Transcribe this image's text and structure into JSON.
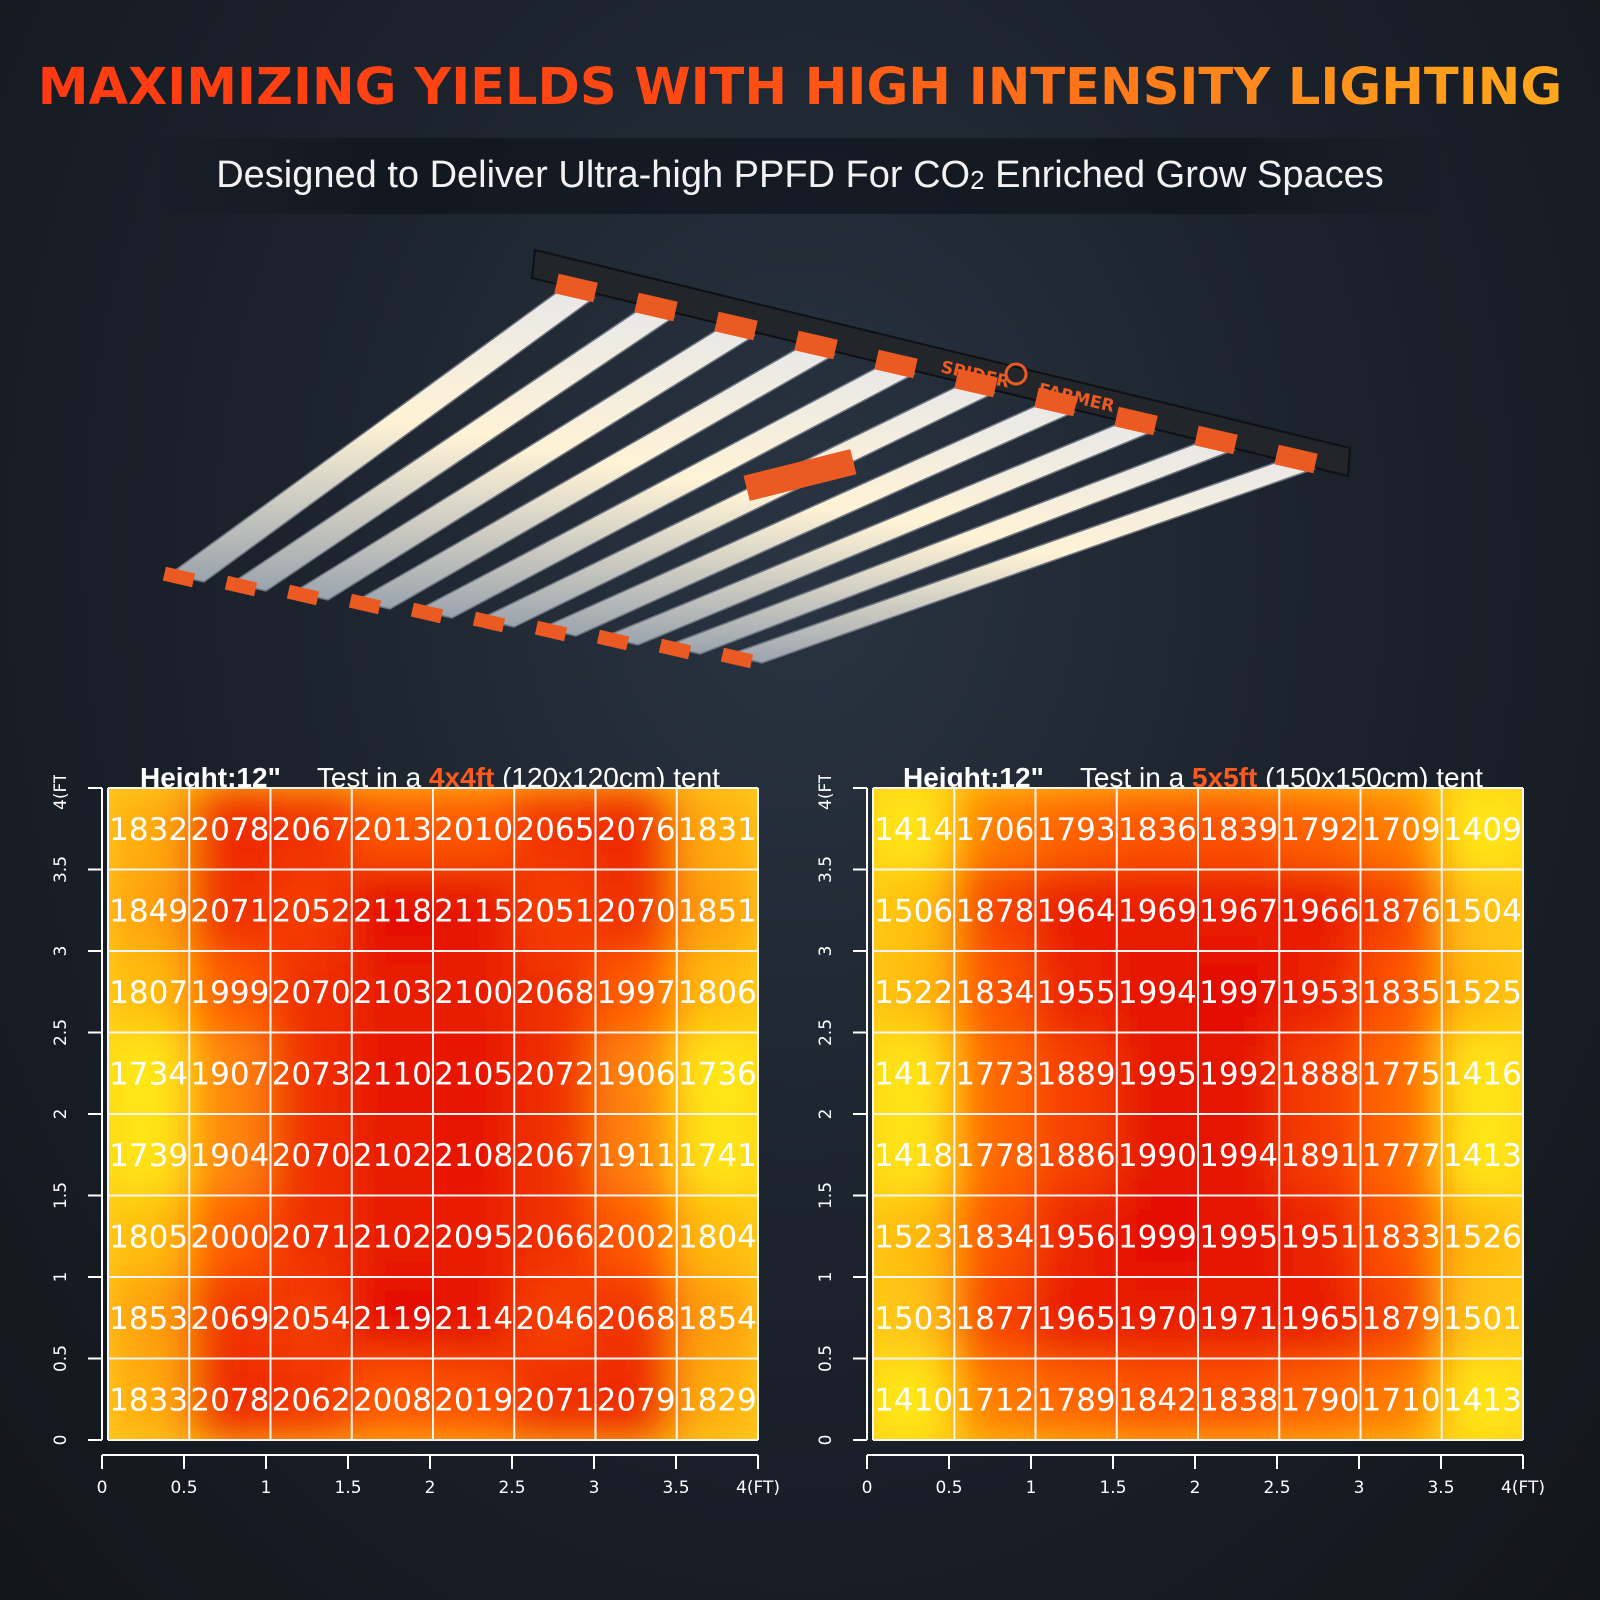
{
  "header": {
    "title_part1": "MAXIMIZING YIELDS WITH HIGH INTENSITY LIGHTING",
    "subtitle_before": "Designed to Deliver Ultra-high PPFD For CO",
    "subtitle_sub": "2",
    "subtitle_after": " Enriched Grow Spaces"
  },
  "product": {
    "brand_left": "SPIDER",
    "brand_right": "FARMER"
  },
  "colors": {
    "title_red": "#ff3a12",
    "title_orange": "#ffa81c",
    "accent": "#ff5a1e",
    "heat_high": "#e41000",
    "heat_mid": "#ff6a00",
    "heat_low": "#ffe818"
  },
  "chart_data": [
    {
      "type": "heatmap",
      "height_label": "Height:12\"",
      "test_prefix": "Test in a ",
      "tent_size": "4x4ft",
      "test_suffix": " (120x120cm) tent",
      "xlabel": "4(FT)",
      "ylabel": "4(FT)",
      "xlim": [
        0,
        4
      ],
      "ylim": [
        0,
        4
      ],
      "x_ticks": [
        "0",
        "0.5",
        "1",
        "1.5",
        "2",
        "2.5",
        "3",
        "3.5",
        "4(FT)"
      ],
      "y_ticks": [
        "0",
        "0.5",
        "1",
        "1.5",
        "2",
        "2.5",
        "3",
        "3.5",
        "4(FT)"
      ],
      "values": [
        [
          1832,
          2078,
          2067,
          2013,
          2010,
          2065,
          2076,
          1831
        ],
        [
          1849,
          2071,
          2052,
          2118,
          2115,
          2051,
          2070,
          1851
        ],
        [
          1807,
          1999,
          2070,
          2103,
          2100,
          2068,
          1997,
          1806
        ],
        [
          1734,
          1907,
          2073,
          2110,
          2105,
          2072,
          1906,
          1736
        ],
        [
          1739,
          1904,
          2070,
          2102,
          2108,
          2067,
          1911,
          1741
        ],
        [
          1805,
          2000,
          2071,
          2102,
          2095,
          2066,
          2002,
          1804
        ],
        [
          1853,
          2069,
          2054,
          2119,
          2114,
          2046,
          2068,
          1854
        ],
        [
          1833,
          2078,
          2062,
          2008,
          2019,
          2071,
          2079,
          1829
        ]
      ]
    },
    {
      "type": "heatmap",
      "height_label": "Height:12\"",
      "test_prefix": "Test in a ",
      "tent_size": "5x5ft",
      "test_suffix": " (150x150cm) tent",
      "xlabel": "4(FT)",
      "ylabel": "4(FT)",
      "xlim": [
        0,
        4
      ],
      "ylim": [
        0,
        4
      ],
      "x_ticks": [
        "0",
        "0.5",
        "1",
        "1.5",
        "2",
        "2.5",
        "3",
        "3.5",
        "4(FT)"
      ],
      "y_ticks": [
        "0",
        "0.5",
        "1",
        "1.5",
        "2",
        "2.5",
        "3",
        "3.5",
        "4(FT)"
      ],
      "values": [
        [
          1414,
          1706,
          1793,
          1836,
          1839,
          1792,
          1709,
          1409
        ],
        [
          1506,
          1878,
          1964,
          1969,
          1967,
          1966,
          1876,
          1504
        ],
        [
          1522,
          1834,
          1955,
          1994,
          1997,
          1953,
          1835,
          1525
        ],
        [
          1417,
          1773,
          1889,
          1995,
          1992,
          1888,
          1775,
          1416
        ],
        [
          1418,
          1778,
          1886,
          1990,
          1994,
          1891,
          1777,
          1413
        ],
        [
          1523,
          1834,
          1956,
          1999,
          1995,
          1951,
          1833,
          1526
        ],
        [
          1503,
          1877,
          1965,
          1970,
          1971,
          1965,
          1879,
          1501
        ],
        [
          1410,
          1712,
          1789,
          1842,
          1838,
          1790,
          1710,
          1413
        ]
      ]
    }
  ]
}
